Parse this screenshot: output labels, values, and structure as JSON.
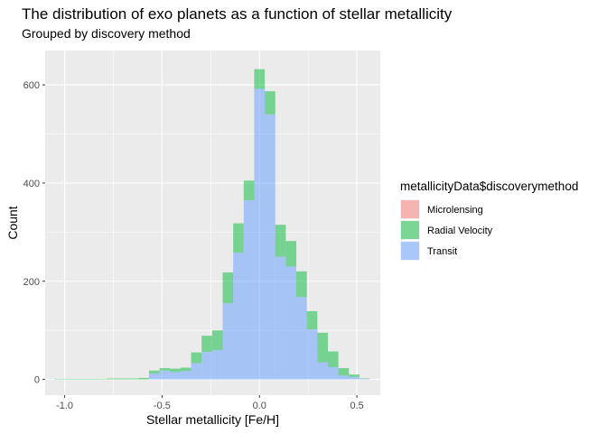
{
  "chart_data": {
    "type": "bar",
    "subtype": "stacked-histogram",
    "title": "The distribution of exo planets as a function of stellar metallicity",
    "subtitle": "Grouped by discovery method",
    "xlabel": "Stellar metallicity [Fe/H]",
    "ylabel": "Count",
    "xlim": [
      -1.1,
      0.62
    ],
    "ylim": [
      -32,
      670
    ],
    "xticks": [
      -1.0,
      -0.5,
      0.0,
      0.5
    ],
    "xtick_labels": [
      "-1.0",
      "-0.5",
      "0.0",
      "0.5"
    ],
    "yticks": [
      0,
      200,
      400,
      600
    ],
    "ytick_labels": [
      "0",
      "200",
      "400",
      "600"
    ],
    "bin_width": 0.054,
    "bin_centers": [
      -1.026,
      -0.972,
      -0.918,
      -0.864,
      -0.81,
      -0.756,
      -0.702,
      -0.648,
      -0.594,
      -0.54,
      -0.486,
      -0.432,
      -0.378,
      -0.324,
      -0.27,
      -0.216,
      -0.162,
      -0.108,
      -0.054,
      0.0,
      0.054,
      0.108,
      0.162,
      0.216,
      0.27,
      0.324,
      0.378,
      0.432,
      0.486,
      0.54
    ],
    "grid": true,
    "legend": {
      "title": "metallicityData$discoverymethod",
      "position": "right"
    },
    "series": [
      {
        "name": "Microlensing",
        "color": "#F8766D",
        "values": [
          0,
          0,
          0,
          0,
          0,
          0,
          0,
          0,
          0,
          0,
          0,
          0,
          0,
          0,
          0,
          0,
          0,
          0,
          0,
          0,
          0,
          0,
          0,
          0,
          0,
          0,
          0,
          0,
          0,
          0
        ]
      },
      {
        "name": "Radial Velocity",
        "color": "#00BA38",
        "values": [
          1,
          1,
          1,
          1,
          1,
          2,
          2,
          2,
          3,
          6,
          5,
          7,
          7,
          22,
          33,
          40,
          63,
          60,
          40,
          40,
          47,
          65,
          52,
          52,
          37,
          60,
          32,
          15,
          5,
          1
        ]
      },
      {
        "name": "Transit",
        "color": "#619CFF",
        "values": [
          0,
          0,
          0,
          0,
          0,
          0,
          0,
          0,
          0,
          12,
          18,
          15,
          17,
          33,
          56,
          60,
          155,
          258,
          365,
          592,
          540,
          250,
          230,
          168,
          102,
          35,
          25,
          8,
          5,
          1
        ]
      }
    ]
  }
}
